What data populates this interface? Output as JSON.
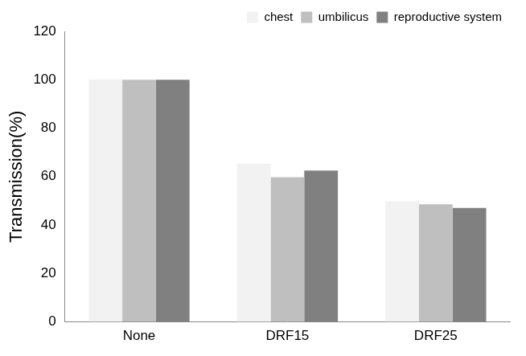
{
  "chart_data": {
    "type": "bar",
    "y_label": "Transmission(%)",
    "categories": [
      "None",
      "DRF15",
      "DRF25"
    ],
    "series": [
      {
        "name": "chest",
        "color": "#f2f2f2",
        "values": [
          100,
          65.3,
          49.8
        ]
      },
      {
        "name": "umbilicus",
        "color": "#bfbfbf",
        "values": [
          100,
          59.8,
          48.6
        ]
      },
      {
        "name": "reproductive system",
        "color": "#808080",
        "values": [
          100,
          62.5,
          47.1
        ]
      }
    ],
    "ylim": [
      0,
      120
    ],
    "yticks": [
      0,
      20,
      40,
      60,
      80,
      100,
      120
    ],
    "grid": false,
    "legend": "upper right"
  }
}
